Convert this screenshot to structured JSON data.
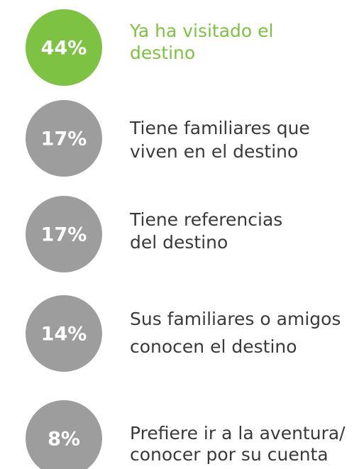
{
  "items": [
    {
      "percent": "44%",
      "lines": [
        "Ya ha visitado el",
        "destino"
      ],
      "highlight": true
    },
    {
      "percent": "17%",
      "lines": [
        "Tiene familiares que",
        "viven en el destino"
      ],
      "highlight": false
    },
    {
      "percent": "17%",
      "lines": [
        "Tiene referencias",
        "del destino"
      ],
      "highlight": false
    },
    {
      "percent": "14%",
      "lines": [
        "Sus familiares o amigos",
        "conocen el destino"
      ],
      "highlight": false
    },
    {
      "percent": "8%",
      "lines": [
        "Prefiere ir a la aventura/",
        "conocer por su cuenta"
      ],
      "highlight": false
    }
  ]
}
